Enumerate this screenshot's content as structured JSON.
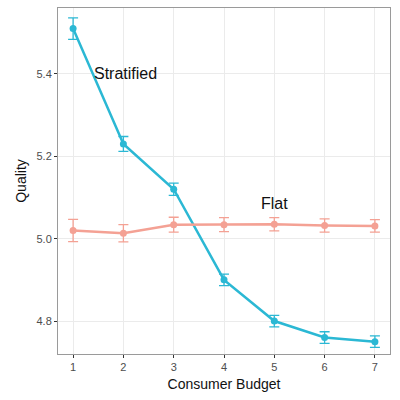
{
  "chart_data": {
    "type": "line",
    "x_label": "Consumer Budget",
    "y_label": "Quality",
    "x": [
      1,
      2,
      3,
      4,
      5,
      6,
      7
    ],
    "series": [
      {
        "name": "Stratified",
        "color": "#2bb8d4",
        "marker": "circle",
        "values": [
          5.51,
          5.23,
          5.12,
          4.9,
          4.8,
          4.76,
          4.75
        ],
        "errors": [
          0.026,
          0.018,
          0.015,
          0.014,
          0.014,
          0.014,
          0.014
        ]
      },
      {
        "name": "Flat",
        "color": "#f4a194",
        "marker": "circle",
        "values": [
          5.02,
          5.013,
          5.034,
          5.034,
          5.035,
          5.032,
          5.031
        ],
        "errors": [
          0.027,
          0.021,
          0.018,
          0.017,
          0.016,
          0.016,
          0.015
        ]
      }
    ],
    "annotations": [
      {
        "text": "Stratified",
        "x": 2.05,
        "y": 5.4
      },
      {
        "text": "Flat",
        "x": 5.0,
        "y": 5.085
      }
    ],
    "xlim": [
      0.7,
      7.3
    ],
    "xticks": [
      1,
      2,
      3,
      4,
      5,
      6,
      7
    ],
    "ylim": [
      4.72,
      5.56
    ],
    "yticks": [
      4.8,
      {
        "value": 5,
        "label": "5.0"
      },
      5.2,
      5.4
    ],
    "grid": true
  }
}
